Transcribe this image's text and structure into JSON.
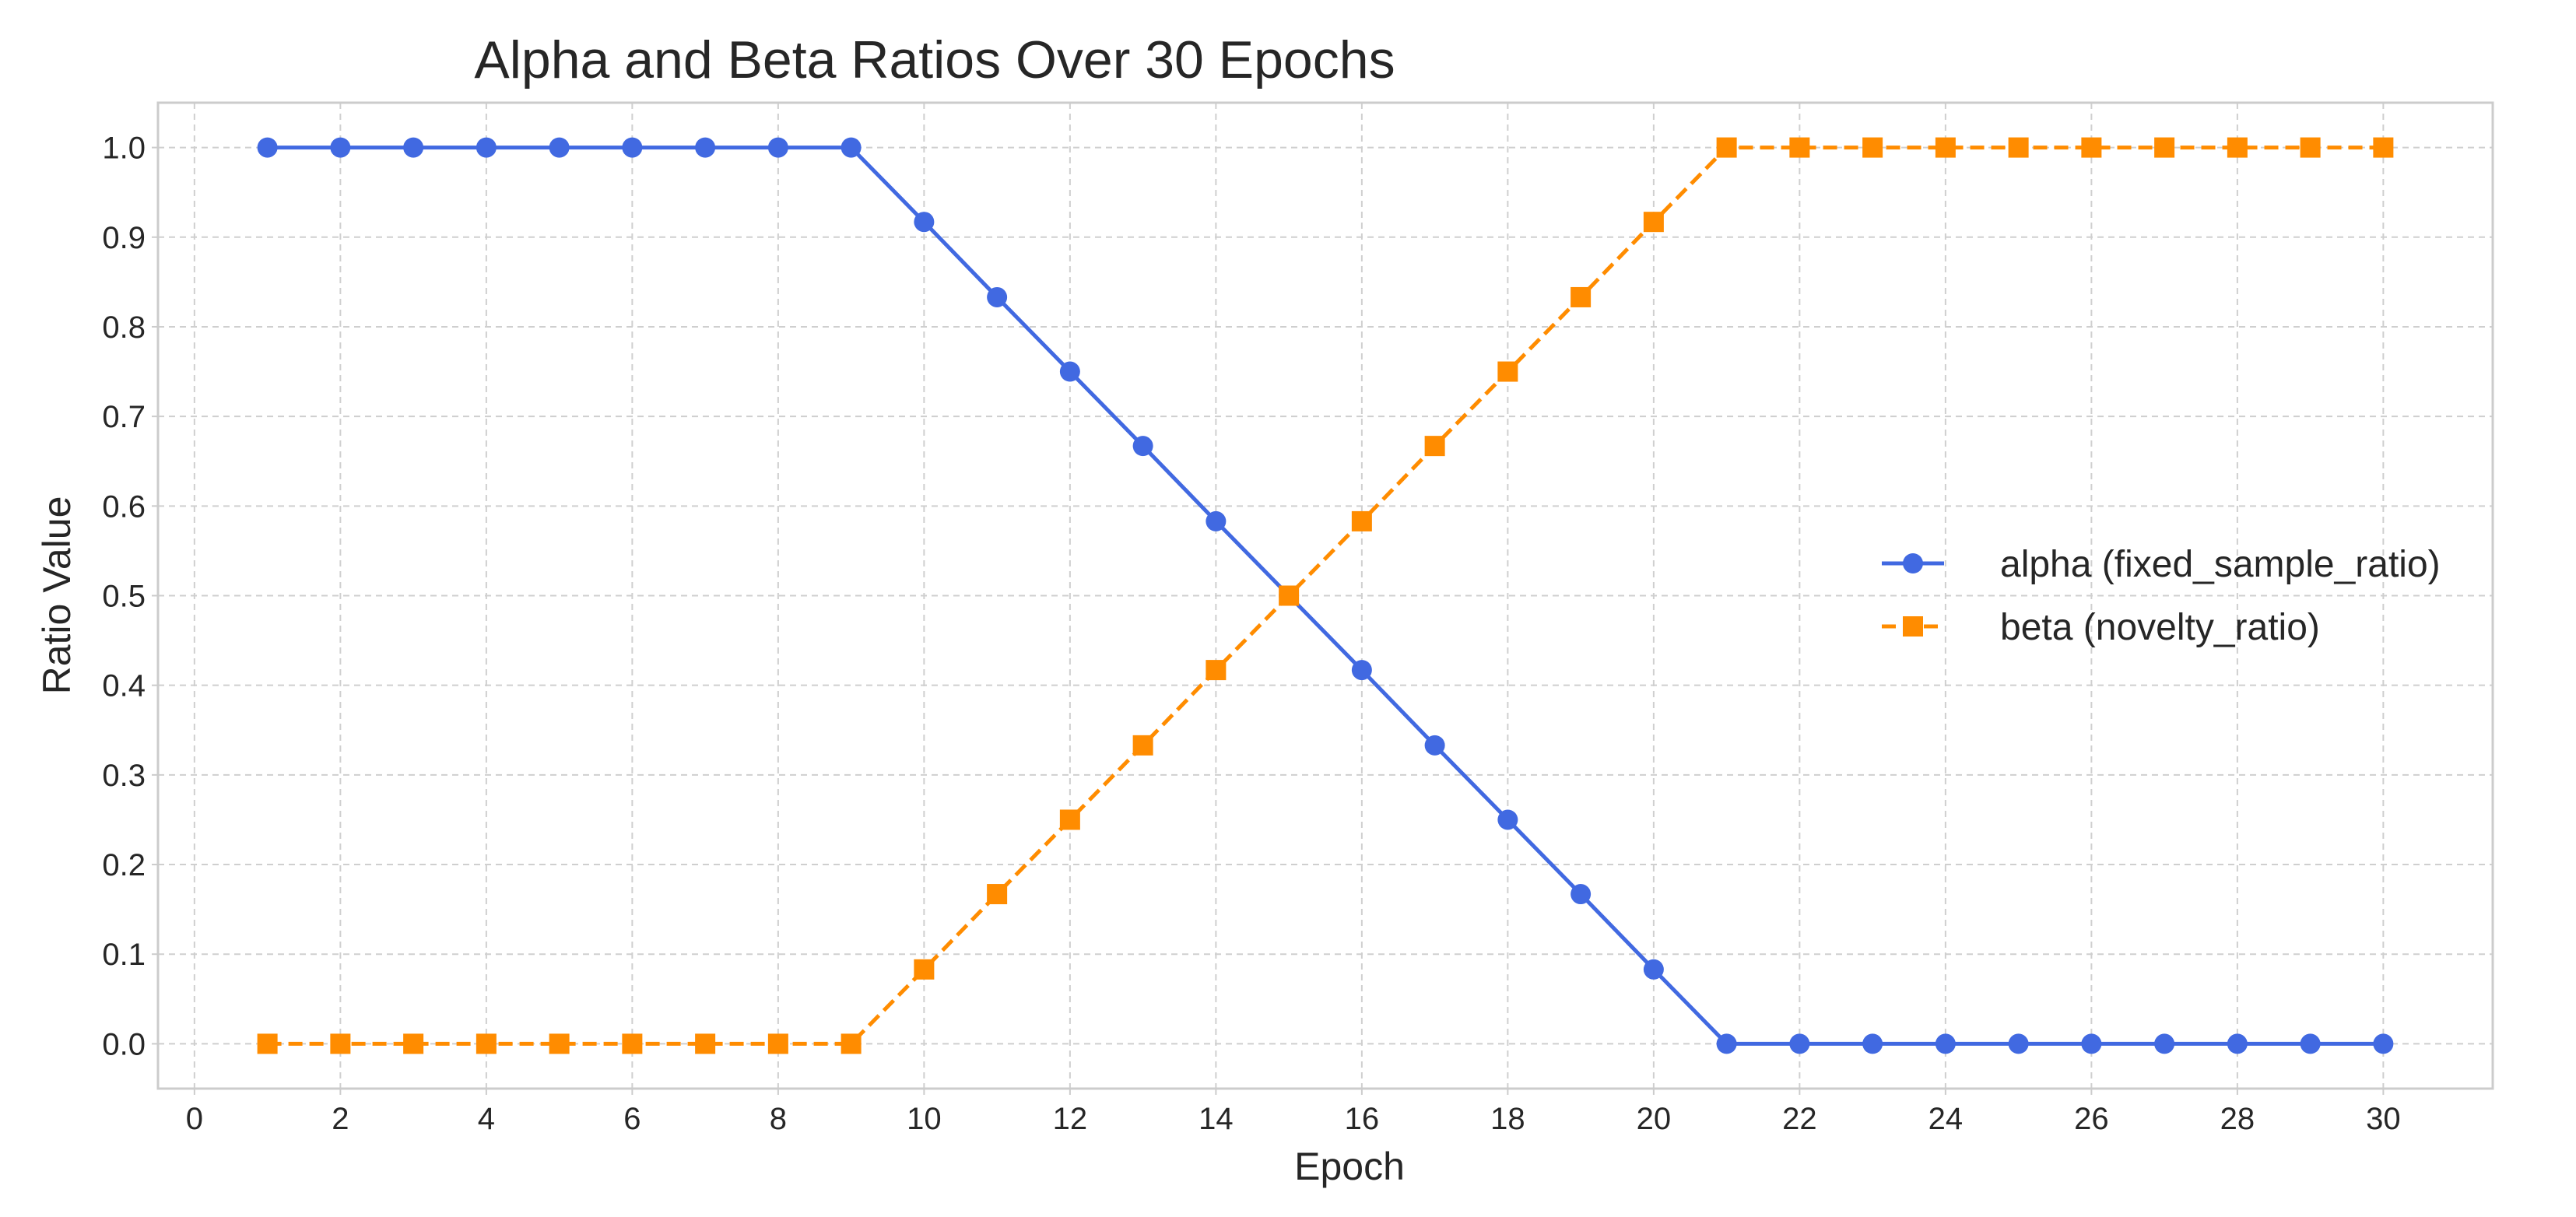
{
  "chart_data": {
    "type": "line",
    "title": "Alpha and Beta Ratios Over 30 Epochs",
    "xlabel": "Epoch",
    "ylabel": "Ratio Value",
    "xlim": [
      -0.5,
      31.5
    ],
    "ylim": [
      -0.05,
      1.05
    ],
    "x_ticks": [
      0,
      2,
      4,
      6,
      8,
      10,
      12,
      14,
      16,
      18,
      20,
      22,
      24,
      26,
      28,
      30
    ],
    "x_tick_labels": [
      "0",
      "2",
      "4",
      "6",
      "8",
      "10",
      "12",
      "14",
      "16",
      "18",
      "20",
      "22",
      "24",
      "26",
      "28",
      "30"
    ],
    "y_ticks": [
      0.0,
      0.1,
      0.2,
      0.3,
      0.4,
      0.5,
      0.6,
      0.7,
      0.8,
      0.9,
      1.0
    ],
    "y_tick_labels": [
      "0.0",
      "0.1",
      "0.2",
      "0.3",
      "0.4",
      "0.5",
      "0.6",
      "0.7",
      "0.8",
      "0.9",
      "1.0"
    ],
    "grid": true,
    "legend_position": "center-right",
    "x": [
      1,
      2,
      3,
      4,
      5,
      6,
      7,
      8,
      9,
      10,
      11,
      12,
      13,
      14,
      15,
      16,
      17,
      18,
      19,
      20,
      21,
      22,
      23,
      24,
      25,
      26,
      27,
      28,
      29,
      30
    ],
    "series": [
      {
        "name": "alpha (fixed_sample_ratio)",
        "color": "#4169e1",
        "line_style": "solid",
        "marker": "circle",
        "values": [
          1.0,
          1.0,
          1.0,
          1.0,
          1.0,
          1.0,
          1.0,
          1.0,
          1.0,
          0.917,
          0.833,
          0.75,
          0.667,
          0.583,
          0.5,
          0.417,
          0.333,
          0.25,
          0.167,
          0.083,
          0.0,
          0.0,
          0.0,
          0.0,
          0.0,
          0.0,
          0.0,
          0.0,
          0.0,
          0.0
        ]
      },
      {
        "name": "beta (novelty_ratio)",
        "color": "#ff8c00",
        "line_style": "dashed",
        "marker": "square",
        "values": [
          0.0,
          0.0,
          0.0,
          0.0,
          0.0,
          0.0,
          0.0,
          0.0,
          0.0,
          0.083,
          0.167,
          0.25,
          0.333,
          0.417,
          0.5,
          0.583,
          0.667,
          0.75,
          0.833,
          0.917,
          1.0,
          1.0,
          1.0,
          1.0,
          1.0,
          1.0,
          1.0,
          1.0,
          1.0,
          1.0
        ]
      }
    ]
  }
}
